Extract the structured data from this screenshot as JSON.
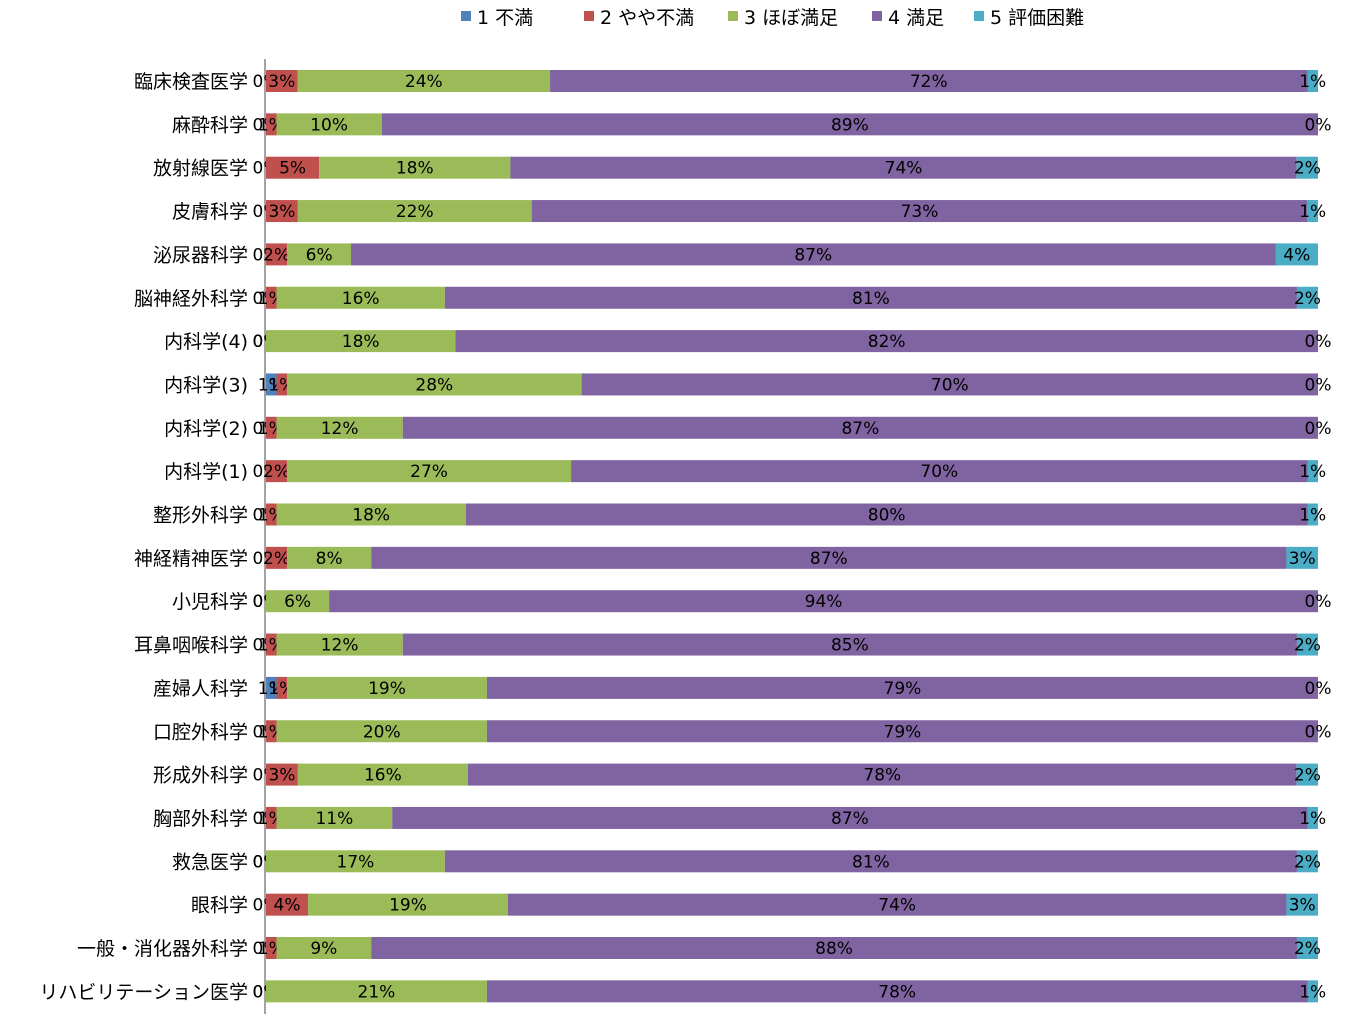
{
  "chart_data": {
    "type": "bar",
    "orientation": "horizontal",
    "stacked": "percent",
    "legend_position": "top",
    "grid": false,
    "title": "",
    "xlabel": "",
    "ylabel": "",
    "xlim": [
      0,
      100
    ],
    "categories": [
      "臨床検査医学",
      "麻酔科学",
      "放射線医学",
      "皮膚科学",
      "泌尿器科学",
      "脳神経外科学",
      "内科学(4)",
      "内科学(3)",
      "内科学(2)",
      "内科学(1)",
      "整形外科学",
      "神経精神医学",
      "小児科学",
      "耳鼻咽喉科学",
      "産婦人科学",
      "口腔外科学",
      "形成外科学",
      "胸部外科学",
      "救急医学",
      "眼科学",
      "一般・消化器外科学",
      "リハビリテーション医学"
    ],
    "series": [
      {
        "name": "1 不満",
        "color": "#4f81bd",
        "values": [
          0,
          0,
          0,
          0,
          0,
          0,
          0,
          1,
          0,
          0,
          0,
          0,
          0,
          0,
          1,
          0,
          0,
          0,
          0,
          0,
          0,
          0
        ]
      },
      {
        "name": "2 やや不満",
        "color": "#c0504d",
        "values": [
          3,
          1,
          5,
          3,
          2,
          1,
          0,
          1,
          1,
          2,
          1,
          2,
          0,
          1,
          1,
          1,
          3,
          1,
          0,
          4,
          1,
          0
        ]
      },
      {
        "name": "3 ほぼ満足",
        "color": "#9bbb59",
        "values": [
          24,
          10,
          18,
          22,
          6,
          16,
          18,
          28,
          12,
          27,
          18,
          8,
          6,
          12,
          19,
          20,
          16,
          11,
          17,
          19,
          9,
          21
        ]
      },
      {
        "name": "4 満足",
        "color": "#8064a2",
        "values": [
          72,
          89,
          74,
          73,
          87,
          81,
          82,
          70,
          87,
          70,
          80,
          87,
          94,
          85,
          79,
          79,
          78,
          87,
          81,
          74,
          88,
          78
        ]
      },
      {
        "name": "5 評価困難",
        "color": "#4bacc6",
        "values": [
          1,
          0,
          2,
          1,
          4,
          2,
          0,
          0,
          0,
          1,
          1,
          3,
          0,
          2,
          0,
          0,
          2,
          1,
          2,
          3,
          2,
          1
        ]
      }
    ]
  }
}
